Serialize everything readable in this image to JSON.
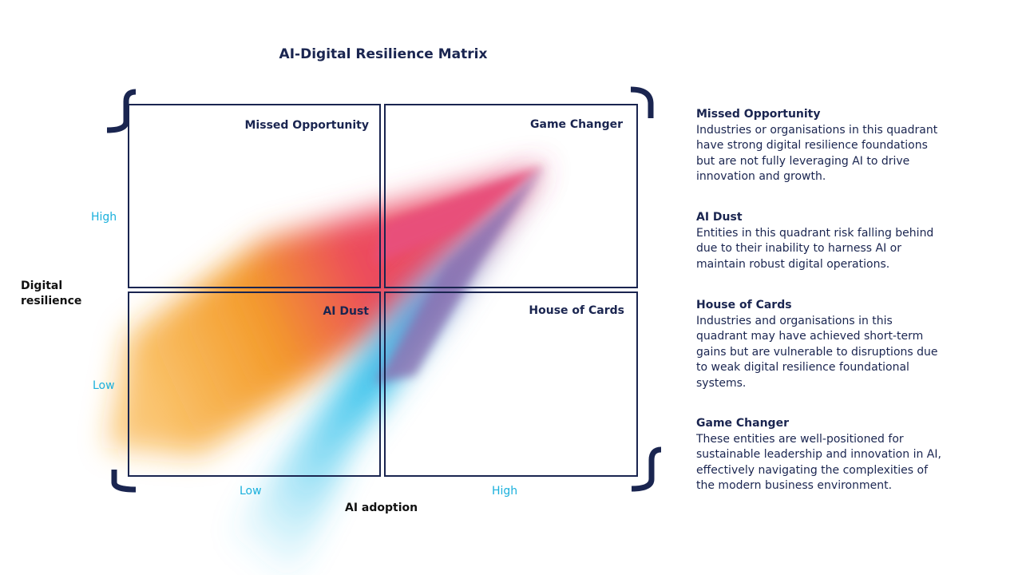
{
  "title": "AI-Digital Resilience Matrix",
  "y_axis": {
    "label": "Digital resilience",
    "ticks": [
      "High",
      "Low"
    ]
  },
  "x_axis": {
    "label": "AI adoption",
    "ticks": [
      "Low",
      "High"
    ]
  },
  "quadrants": [
    "Missed Opportunity",
    "Game Changer",
    "AI Dust",
    "House of Cards"
  ],
  "descriptions": [
    {
      "title": "Missed Opportunity",
      "text": "Industries or organisations in this quadrant have strong digital resilience foundations but are not fully leveraging AI to drive innovation and growth."
    },
    {
      "title": "AI Dust",
      "text": "Entities in this quadrant risk falling behind due to their inability to harness AI or maintain robust digital operations."
    },
    {
      "title": "House of Cards",
      "text": "Industries and organisations in this quadrant may have achieved short-term gains but are vulnerable to disruptions due to weak digital resilience foundational systems."
    },
    {
      "title": "Game Changer",
      "text": "These entities are well-positioned for sustainable leadership and innovation in AI, effectively navigating the complexities of the modern business environment."
    }
  ]
}
